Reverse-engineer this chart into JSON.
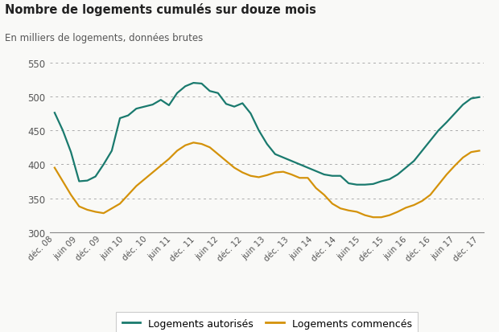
{
  "title": "Nombre de logements cumulés sur douze mois",
  "subtitle": "En milliers de logements, données brutes",
  "background_color": "#f9f9f7",
  "grid_color": "#aaaaaa",
  "line_autorise_color": "#1a7a6e",
  "line_commence_color": "#d4920a",
  "ylim": [
    300,
    555
  ],
  "yticks": [
    300,
    350,
    400,
    450,
    500,
    550
  ],
  "legend_labels": [
    "Logements autorisés",
    "Logements commencés"
  ],
  "x_tick_labels": [
    "déc. 08",
    "juin 09",
    "déc. 09",
    "juin 10",
    "déc. 10",
    "juin 11",
    "déc. 11",
    "juin 12",
    "déc. 12",
    "juin 13",
    "déc. 13",
    "juin 14",
    "déc. 14",
    "juin 15",
    "déc. 15",
    "juin 16",
    "déc. 16",
    "juin 17",
    "déc. 17"
  ],
  "autorise": [
    476,
    450,
    418,
    375,
    376,
    382,
    400,
    420,
    468,
    472,
    482,
    485,
    488,
    495,
    487,
    505,
    515,
    520,
    519,
    508,
    505,
    489,
    485,
    490,
    475,
    450,
    430,
    415,
    410,
    405,
    400,
    395,
    390,
    385,
    383,
    383,
    372,
    370,
    370,
    371,
    375,
    378,
    385,
    395,
    405,
    420,
    435,
    450,
    462,
    475,
    488,
    497,
    499
  ],
  "commence": [
    395,
    375,
    355,
    338,
    333,
    330,
    328,
    335,
    342,
    355,
    368,
    378,
    388,
    398,
    408,
    420,
    428,
    432,
    430,
    425,
    415,
    405,
    395,
    388,
    383,
    381,
    384,
    388,
    389,
    385,
    380,
    380,
    365,
    355,
    342,
    335,
    332,
    330,
    325,
    322,
    322,
    325,
    330,
    336,
    340,
    346,
    355,
    370,
    385,
    398,
    410,
    418,
    420
  ]
}
